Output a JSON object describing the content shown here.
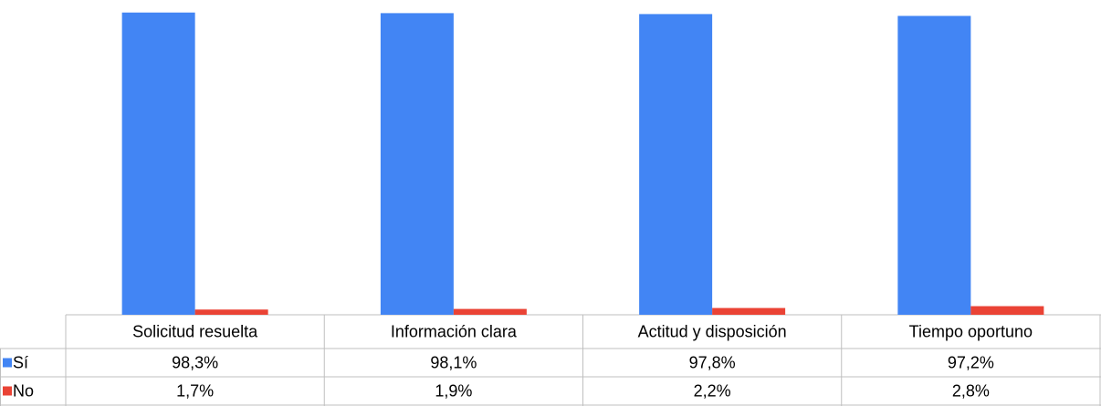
{
  "chart_data": {
    "type": "bar",
    "categories": [
      "Solicitud resuelta",
      "Información clara",
      "Actitud y disposición",
      "Tiempo oportuno"
    ],
    "series": [
      {
        "name": "Sí",
        "color": "#4285f4",
        "values": [
          98.3,
          98.1,
          97.8,
          97.2
        ],
        "value_labels": [
          "98,3%",
          "98,1%",
          "97,8%",
          "97,2%"
        ]
      },
      {
        "name": "No",
        "color": "#ea4335",
        "values": [
          1.7,
          1.9,
          2.2,
          2.8
        ],
        "value_labels": [
          "1,7%",
          "1,9%",
          "2,2%",
          "2,8%"
        ]
      }
    ],
    "ylim": [
      0,
      100
    ]
  }
}
